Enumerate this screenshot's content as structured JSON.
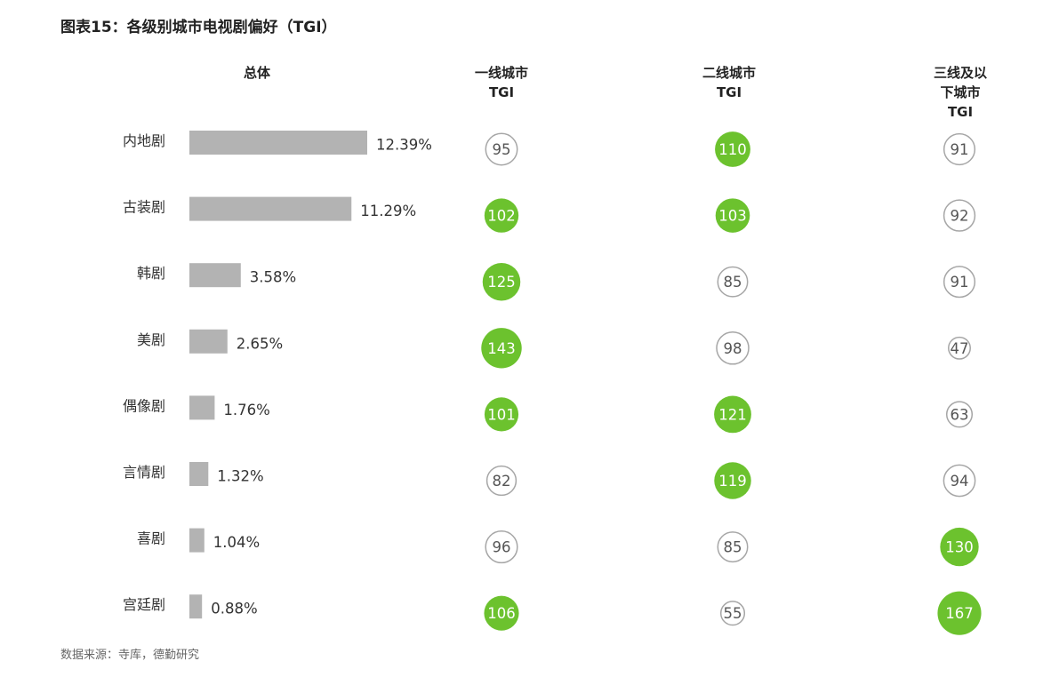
{
  "title": "图表15：各级别城市电视剧偏好（TGI）",
  "headers": {
    "overall": "总体",
    "tier1": "一线城市\nTGI",
    "tier2": "二线城市\nTGI",
    "tier3": "三线及以\n下城市\nTGI"
  },
  "source": "数据来源：寺库，德勤研究",
  "colors": {
    "bar": "#b3b3b3",
    "highlight_circle": "#6cc22e",
    "plain_circle_stroke": "#a6a6a6",
    "text": "#333333"
  },
  "chart_data": {
    "type": "bar",
    "categories": [
      "内地剧",
      "古装剧",
      "韩剧",
      "美剧",
      "偶像剧",
      "言情剧",
      "喜剧",
      "宫廷剧"
    ],
    "values": [
      12.39,
      11.29,
      3.58,
      2.65,
      1.76,
      1.32,
      1.04,
      0.88
    ],
    "value_labels": [
      "12.39%",
      "11.29%",
      "3.58%",
      "2.65%",
      "1.76%",
      "1.32%",
      "1.04%",
      "0.88%"
    ],
    "tgi_series": [
      {
        "name": "一线城市TGI",
        "values": [
          95,
          102,
          125,
          143,
          101,
          82,
          96,
          106
        ]
      },
      {
        "name": "二线城市TGI",
        "values": [
          110,
          103,
          85,
          98,
          121,
          119,
          85,
          55
        ]
      },
      {
        "name": "三线及以下城市TGI",
        "values": [
          91,
          92,
          91,
          47,
          63,
          94,
          130,
          167
        ]
      }
    ],
    "highlight_threshold": 100
  }
}
